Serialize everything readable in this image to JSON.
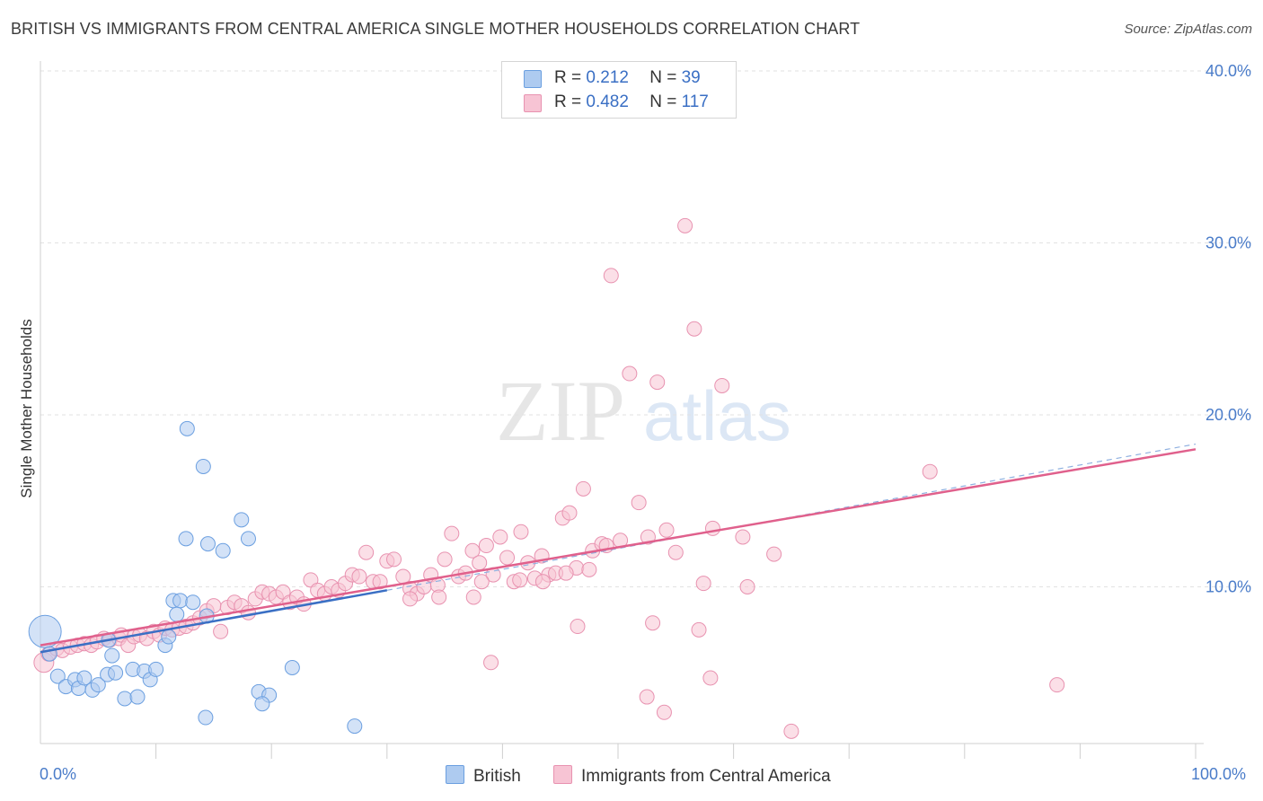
{
  "header": {
    "title": "BRITISH VS IMMIGRANTS FROM CENTRAL AMERICA SINGLE MOTHER HOUSEHOLDS CORRELATION CHART",
    "source": "Source: ZipAtlas.com"
  },
  "watermark": {
    "part1": "ZIP",
    "part2": "atlas"
  },
  "legend": {
    "rows": [
      {
        "r_label": "R = ",
        "r_value": "0.212",
        "n_label": "N = ",
        "n_value": "39"
      },
      {
        "r_label": "R = ",
        "r_value": "0.482",
        "n_label": "N = ",
        "n_value": "117"
      }
    ]
  },
  "bottom_legend": {
    "british": "British",
    "central_america": "Immigrants from Central America"
  },
  "colors": {
    "british_fill": "#aecbf0",
    "british_stroke": "#6b9fe0",
    "british_line": "#3a6fc4",
    "ca_fill": "#f7c4d4",
    "ca_stroke": "#e892b0",
    "ca_line": "#e0608c",
    "grid": "#e2e2e2",
    "axis_text": "#4a7cc9"
  },
  "chart_data": {
    "type": "scatter",
    "title": "BRITISH VS IMMIGRANTS FROM CENTRAL AMERICA SINGLE MOTHER HOUSEHOLDS CORRELATION CHART",
    "xlabel": "",
    "ylabel": "Single Mother Households",
    "xlim": [
      0,
      100
    ],
    "ylim": [
      0,
      40
    ],
    "x_tick_labels": [
      "0.0%",
      "100.0%"
    ],
    "y_tick_labels": [
      "10.0%",
      "20.0%",
      "30.0%",
      "40.0%"
    ],
    "y_ticks": [
      10,
      20,
      30,
      40
    ],
    "grid": true,
    "legend_position": "top-center",
    "series": [
      {
        "name": "British",
        "R": 0.212,
        "N": 39,
        "trend": {
          "x0": 0,
          "y0": 6.2,
          "x1": 30,
          "y1": 9.8,
          "dashed_extension_to_x": 100,
          "dashed_extension_y": 18.3
        },
        "points": [
          [
            0.4,
            7.4
          ],
          [
            0.8,
            6.1
          ],
          [
            1.5,
            4.8
          ],
          [
            2.2,
            4.2
          ],
          [
            3.0,
            4.6
          ],
          [
            3.3,
            4.1
          ],
          [
            3.8,
            4.7
          ],
          [
            4.5,
            4.0
          ],
          [
            5.0,
            4.3
          ],
          [
            5.8,
            4.9
          ],
          [
            5.9,
            6.9
          ],
          [
            6.2,
            6.0
          ],
          [
            6.5,
            5.0
          ],
          [
            7.3,
            3.5
          ],
          [
            8.0,
            5.2
          ],
          [
            8.4,
            3.6
          ],
          [
            9.0,
            5.1
          ],
          [
            9.5,
            4.6
          ],
          [
            10.0,
            5.2
          ],
          [
            10.8,
            6.6
          ],
          [
            11.1,
            7.1
          ],
          [
            11.5,
            9.2
          ],
          [
            12.1,
            9.2
          ],
          [
            11.8,
            8.4
          ],
          [
            14.5,
            12.5
          ],
          [
            12.6,
            12.8
          ],
          [
            13.2,
            9.1
          ],
          [
            14.4,
            8.3
          ],
          [
            12.7,
            19.2
          ],
          [
            14.1,
            17.0
          ],
          [
            15.8,
            12.1
          ],
          [
            14.3,
            2.4
          ],
          [
            17.4,
            13.9
          ],
          [
            18.0,
            12.8
          ],
          [
            18.9,
            3.9
          ],
          [
            19.8,
            3.7
          ],
          [
            19.2,
            3.2
          ],
          [
            21.8,
            5.3
          ],
          [
            27.2,
            1.9
          ]
        ]
      },
      {
        "name": "Immigrants from Central America",
        "R": 0.482,
        "N": 117,
        "trend": {
          "x0": 0,
          "y0": 6.6,
          "x1": 100,
          "y1": 18.0
        },
        "points": [
          [
            0.3,
            5.6
          ],
          [
            0.7,
            6.1
          ],
          [
            1.4,
            6.4
          ],
          [
            1.9,
            6.3
          ],
          [
            2.6,
            6.5
          ],
          [
            3.2,
            6.6
          ],
          [
            3.8,
            6.7
          ],
          [
            4.4,
            6.6
          ],
          [
            4.9,
            6.8
          ],
          [
            5.5,
            7.0
          ],
          [
            6.0,
            6.9
          ],
          [
            6.8,
            7.0
          ],
          [
            7.0,
            7.2
          ],
          [
            7.6,
            6.6
          ],
          [
            8.1,
            7.1
          ],
          [
            8.6,
            7.2
          ],
          [
            9.2,
            7.0
          ],
          [
            9.8,
            7.4
          ],
          [
            10.3,
            7.2
          ],
          [
            10.8,
            7.6
          ],
          [
            11.4,
            7.5
          ],
          [
            12.0,
            7.6
          ],
          [
            12.6,
            7.7
          ],
          [
            13.2,
            7.9
          ],
          [
            13.8,
            8.2
          ],
          [
            14.4,
            8.6
          ],
          [
            15.0,
            8.9
          ],
          [
            15.6,
            7.4
          ],
          [
            16.2,
            8.8
          ],
          [
            16.8,
            9.1
          ],
          [
            17.4,
            8.9
          ],
          [
            18.0,
            8.5
          ],
          [
            18.6,
            9.3
          ],
          [
            19.2,
            9.7
          ],
          [
            19.8,
            9.6
          ],
          [
            20.4,
            9.4
          ],
          [
            21.0,
            9.7
          ],
          [
            21.6,
            9.1
          ],
          [
            22.2,
            9.4
          ],
          [
            22.8,
            9.0
          ],
          [
            23.4,
            10.4
          ],
          [
            24.0,
            9.8
          ],
          [
            24.6,
            9.6
          ],
          [
            25.2,
            10.0
          ],
          [
            25.8,
            9.8
          ],
          [
            26.4,
            10.2
          ],
          [
            27.0,
            10.7
          ],
          [
            27.6,
            10.6
          ],
          [
            28.2,
            12.0
          ],
          [
            28.8,
            10.3
          ],
          [
            29.4,
            10.3
          ],
          [
            30.0,
            11.5
          ],
          [
            30.6,
            11.6
          ],
          [
            31.4,
            10.6
          ],
          [
            32.0,
            9.9
          ],
          [
            32.6,
            9.6
          ],
          [
            33.2,
            10.0
          ],
          [
            33.8,
            10.7
          ],
          [
            34.4,
            10.1
          ],
          [
            35.0,
            11.6
          ],
          [
            35.6,
            13.1
          ],
          [
            36.2,
            10.6
          ],
          [
            36.8,
            10.8
          ],
          [
            37.4,
            12.1
          ],
          [
            38.0,
            11.4
          ],
          [
            38.6,
            12.4
          ],
          [
            39.2,
            10.7
          ],
          [
            39.8,
            12.9
          ],
          [
            40.4,
            11.7
          ],
          [
            41.0,
            10.3
          ],
          [
            41.6,
            13.2
          ],
          [
            42.2,
            11.4
          ],
          [
            42.8,
            10.5
          ],
          [
            43.4,
            11.8
          ],
          [
            44.0,
            10.7
          ],
          [
            44.6,
            10.8
          ],
          [
            45.2,
            14.0
          ],
          [
            45.8,
            14.3
          ],
          [
            46.4,
            11.1
          ],
          [
            47.0,
            15.7
          ],
          [
            47.8,
            12.1
          ],
          [
            48.6,
            12.5
          ],
          [
            49.4,
            28.1
          ],
          [
            50.2,
            12.7
          ],
          [
            51.0,
            22.4
          ],
          [
            51.8,
            14.9
          ],
          [
            52.6,
            12.9
          ],
          [
            53.4,
            21.9
          ],
          [
            54.2,
            13.3
          ],
          [
            55.0,
            12.0
          ],
          [
            55.8,
            31.0
          ],
          [
            56.6,
            25.0
          ],
          [
            57.4,
            10.2
          ],
          [
            58.2,
            13.4
          ],
          [
            59.0,
            21.7
          ],
          [
            60.8,
            12.9
          ],
          [
            32.0,
            9.3
          ],
          [
            34.5,
            9.4
          ],
          [
            37.5,
            9.4
          ],
          [
            38.2,
            10.3
          ],
          [
            41.5,
            10.4
          ],
          [
            43.5,
            10.3
          ],
          [
            45.5,
            10.8
          ],
          [
            47.5,
            11.0
          ],
          [
            49.0,
            12.4
          ],
          [
            53.0,
            7.9
          ],
          [
            57.0,
            7.5
          ],
          [
            61.2,
            10.0
          ],
          [
            63.5,
            11.9
          ],
          [
            52.5,
            3.6
          ],
          [
            54.0,
            2.7
          ],
          [
            58.0,
            4.7
          ],
          [
            65.0,
            1.6
          ],
          [
            77.0,
            16.7
          ],
          [
            88.0,
            4.3
          ],
          [
            39.0,
            5.6
          ],
          [
            46.5,
            7.7
          ]
        ]
      }
    ]
  }
}
